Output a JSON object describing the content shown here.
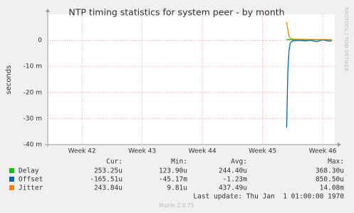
{
  "chart_data": {
    "type": "line",
    "title": "NTP timing statistics for system peer - by month",
    "y_label": "seconds",
    "x": [
      45.4,
      45.42,
      45.44,
      45.46,
      45.5,
      45.6,
      45.7,
      45.8,
      45.9,
      46.0,
      46.1,
      46.15
    ],
    "xlim": [
      41.43,
      46.2
    ],
    "xticks": [
      {
        "value": 42,
        "label": "Week 42"
      },
      {
        "value": 43,
        "label": "Week 43"
      },
      {
        "value": 44,
        "label": "Week 44"
      },
      {
        "value": 45,
        "label": "Week 45"
      },
      {
        "value": 46,
        "label": "Week 46"
      }
    ],
    "ylim": [
      -0.04,
      0.01
    ],
    "yticks": [
      {
        "value": -0.04,
        "label": "-40 m"
      },
      {
        "value": -0.03,
        "label": "-30 m"
      },
      {
        "value": -0.02,
        "label": "-20 m"
      },
      {
        "value": -0.01,
        "label": "-10 m"
      },
      0
    ],
    "grid": true,
    "series": [
      {
        "name": "Delay",
        "color": "#00cc00",
        "values": [
          0.00025,
          0.00025,
          0.00025,
          0.00025,
          0.00025,
          0.00025,
          0.00025,
          0.00025,
          0.00025,
          0.00025,
          0.00025,
          0.00025
        ]
      },
      {
        "name": "Offset",
        "color": "#0066b3",
        "values": [
          -0.0335,
          -0.012,
          -0.004,
          -0.001,
          -0.0002,
          0.0,
          -0.0002,
          0.0,
          -0.0005,
          0.0002,
          -0.0003,
          -0.000166
        ]
      },
      {
        "name": "Jitter",
        "color": "#ff8000",
        "values": [
          0.007,
          0.004,
          0.0015,
          0.0008,
          0.0005,
          0.0004,
          0.0004,
          0.0003,
          0.0003,
          0.0003,
          0.0003,
          0.000244
        ]
      }
    ],
    "legend_columns": [
      "Cur:",
      "Min:",
      "Avg:",
      "Max:"
    ],
    "legend_stats": [
      [
        "253.25u",
        "123.90u",
        "244.40u",
        "368.30u"
      ],
      [
        "-165.51u",
        "-45.17m",
        "-1.23m",
        "850.50u"
      ],
      [
        "243.84u",
        "9.81u",
        "437.49u",
        "14.08m"
      ]
    ],
    "last_update": "Last update: Thu Jan  1 01:00:00 1970",
    "footer": "Munin 2.0.75",
    "watermark": "RRDTOOL / TOBI OETIKER"
  }
}
